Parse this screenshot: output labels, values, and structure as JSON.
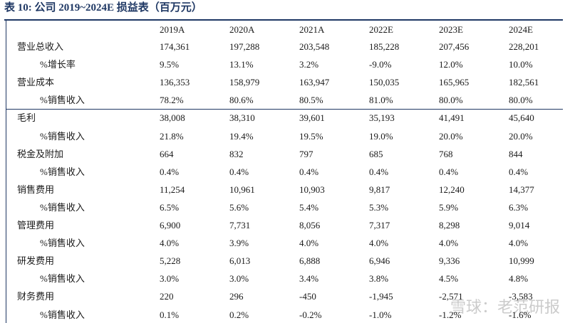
{
  "title": "表 10: 公司 2019~2024E 损益表（百万元）",
  "columns": [
    "2019A",
    "2020A",
    "2021A",
    "2022E",
    "2023E",
    "2024E"
  ],
  "rows": [
    {
      "label": "营业总收入",
      "values": [
        "174,361",
        "197,288",
        "203,548",
        "185,228",
        "207,456",
        "228,201"
      ]
    },
    {
      "label": "%增长率",
      "values": [
        "9.5%",
        "13.1%",
        "3.2%",
        "-9.0%",
        "12.0%",
        "10.0%"
      ]
    },
    {
      "label": "营业成本",
      "values": [
        "136,353",
        "158,979",
        "163,947",
        "150,035",
        "165,965",
        "182,561"
      ]
    },
    {
      "label": "%销售收入",
      "values": [
        "78.2%",
        "80.6%",
        "80.5%",
        "81.0%",
        "80.0%",
        "80.0%"
      ]
    },
    {
      "label": "毛利",
      "values": [
        "38,008",
        "38,310",
        "39,601",
        "35,193",
        "41,491",
        "45,640"
      ]
    },
    {
      "label": "%销售收入",
      "values": [
        "21.8%",
        "19.4%",
        "19.5%",
        "19.0%",
        "20.0%",
        "20.0%"
      ]
    },
    {
      "label": "税金及附加",
      "values": [
        "664",
        "832",
        "797",
        "685",
        "768",
        "844"
      ]
    },
    {
      "label": "%销售收入",
      "values": [
        "0.4%",
        "0.4%",
        "0.4%",
        "0.4%",
        "0.4%",
        "0.4%"
      ]
    },
    {
      "label": "销售费用",
      "values": [
        "11,254",
        "10,961",
        "10,903",
        "9,817",
        "12,240",
        "14,377"
      ]
    },
    {
      "label": "%销售收入",
      "values": [
        "6.5%",
        "5.6%",
        "5.4%",
        "5.3%",
        "5.9%",
        "6.3%"
      ]
    },
    {
      "label": "管理费用",
      "values": [
        "6,900",
        "7,731",
        "8,056",
        "7,317",
        "8,298",
        "9,014"
      ]
    },
    {
      "label": "%销售收入",
      "values": [
        "4.0%",
        "3.9%",
        "4.0%",
        "4.0%",
        "4.0%",
        "4.0%"
      ]
    },
    {
      "label": "研发费用",
      "values": [
        "5,228",
        "6,013",
        "6,888",
        "6,946",
        "9,336",
        "10,999"
      ]
    },
    {
      "label": "%销售收入",
      "values": [
        "3.0%",
        "3.0%",
        "3.4%",
        "3.8%",
        "4.5%",
        "4.8%"
      ]
    },
    {
      "label": "财务费用",
      "values": [
        "220",
        "296",
        "-450",
        "-1,945",
        "-2,571",
        "-3,583"
      ]
    },
    {
      "label": "%销售收入",
      "values": [
        "0.1%",
        "0.2%",
        "-0.2%",
        "-1.0%",
        "-1.2%",
        "-1.6%"
      ]
    }
  ],
  "watermark": "雪球：老范研报"
}
